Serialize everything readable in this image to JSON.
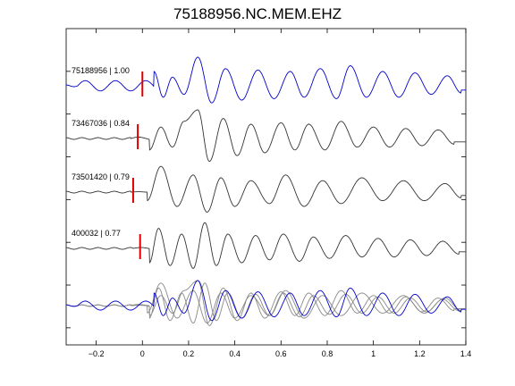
{
  "chart_data": {
    "type": "line",
    "title": "75188956.NC.MEM.EHZ",
    "xlabel": "",
    "ylabel": "",
    "xlim": [
      -0.33,
      1.4
    ],
    "xticks": [
      -0.2,
      0,
      0.2,
      0.4,
      0.6,
      0.8,
      1,
      1.2,
      1.4
    ],
    "xtick_labels": [
      "−0.2",
      "0",
      "0.2",
      "0.4",
      "0.6",
      "0.8",
      "1",
      "1.2",
      "1.4"
    ],
    "grid": false,
    "legend": "none",
    "colors": {
      "primary_trace": "#0000cc",
      "other_traces": "#333333",
      "overlay_gray": "#888888",
      "pick_marker": "#dd0000",
      "axes": "#000000"
    },
    "series": [
      {
        "label": "75188956 | 1.00",
        "color": "#0000cc",
        "pick_time": 0.0,
        "onset": -0.28,
        "pre_amplitude": 0.3,
        "post_amplitude": 1.0,
        "peak_times": [
          0.05,
          0.09,
          0.13,
          0.18,
          0.24,
          0.3,
          0.36,
          0.43,
          0.5,
          0.57,
          0.64,
          0.7,
          0.77,
          0.84,
          0.9,
          0.97,
          1.04,
          1.11,
          1.18,
          1.25,
          1.32,
          1.38
        ],
        "peak_values": [
          0.5,
          -0.4,
          0.3,
          -0.3,
          1.0,
          -0.6,
          0.6,
          -0.5,
          0.55,
          -0.45,
          0.5,
          -0.4,
          0.6,
          -0.45,
          0.7,
          -0.4,
          0.5,
          -0.4,
          0.45,
          -0.3,
          0.35,
          -0.25
        ]
      },
      {
        "label": "73467036 | 0.84",
        "color": "#333333",
        "pick_time": -0.02,
        "onset": -0.05,
        "pre_amplitude": 0.08,
        "post_amplitude": 1.0,
        "peak_times": [
          0.03,
          0.08,
          0.13,
          0.18,
          0.24,
          0.29,
          0.35,
          0.41,
          0.47,
          0.53,
          0.6,
          0.66,
          0.72,
          0.79,
          0.86,
          0.93,
          1.0,
          1.07,
          1.14,
          1.21,
          1.28,
          1.35
        ],
        "peak_values": [
          -0.4,
          0.4,
          -0.3,
          0.6,
          1.0,
          -0.8,
          0.7,
          -0.6,
          0.5,
          -0.5,
          0.55,
          -0.4,
          0.5,
          -0.4,
          0.6,
          -0.3,
          0.4,
          -0.3,
          0.35,
          -0.25,
          0.3,
          -0.2
        ]
      },
      {
        "label": "73501420 | 0.79",
        "color": "#333333",
        "pick_time": -0.04,
        "onset": -0.05,
        "pre_amplitude": 0.02,
        "post_amplitude": 1.0,
        "peak_times": [
          0.02,
          0.08,
          0.15,
          0.22,
          0.28,
          0.34,
          0.4,
          0.47,
          0.55,
          0.62,
          0.7,
          0.78,
          0.86,
          0.95,
          1.04,
          1.13,
          1.22,
          1.31,
          1.38
        ],
        "peak_values": [
          -0.3,
          0.9,
          -0.5,
          0.6,
          -0.7,
          0.5,
          -0.5,
          0.4,
          -0.4,
          0.6,
          -0.5,
          0.4,
          -0.4,
          0.5,
          -0.3,
          0.4,
          -0.3,
          0.3,
          -0.2
        ]
      },
      {
        "label": "400032 | 0.77",
        "color": "#333333",
        "pick_time": -0.01,
        "onset": -0.04,
        "pre_amplitude": 0.05,
        "post_amplitude": 1.0,
        "peak_times": [
          0.03,
          0.07,
          0.12,
          0.17,
          0.22,
          0.27,
          0.32,
          0.37,
          0.43,
          0.49,
          0.55,
          0.61,
          0.68,
          0.74,
          0.81,
          0.88,
          0.95,
          1.02,
          1.09,
          1.16,
          1.23,
          1.3,
          1.37
        ],
        "peak_values": [
          -0.5,
          0.7,
          -0.6,
          0.5,
          -0.7,
          0.9,
          -0.6,
          0.5,
          -0.5,
          0.45,
          -0.4,
          0.5,
          -0.45,
          0.4,
          -0.35,
          0.45,
          -0.3,
          0.35,
          -0.3,
          0.3,
          -0.25,
          0.25,
          -0.2
        ]
      }
    ]
  }
}
